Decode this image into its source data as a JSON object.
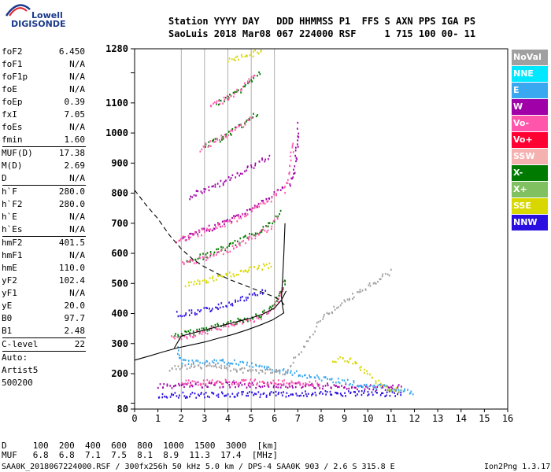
{
  "logo": {
    "word": "Lowell",
    "brand": "DIGISONDE"
  },
  "header": {
    "line1": "Station YYYY DAY   DDD HHMMSS P1  FFS S AXN PPS IGA PS",
    "line2": "SaoLuis 2018 Mar08 067 224000 RSF     1 715 100 00- 11"
  },
  "params": [
    {
      "name": "foF2",
      "value": "6.450"
    },
    {
      "name": "foF1",
      "value": "N/A"
    },
    {
      "name": "foF1p",
      "value": "N/A"
    },
    {
      "name": "foE",
      "value": "N/A"
    },
    {
      "name": "foEp",
      "value": "0.39"
    },
    {
      "name": "fxI",
      "value": "7.05"
    },
    {
      "name": "foEs",
      "value": "N/A"
    },
    {
      "name": "fmin",
      "value": "1.60",
      "sep": true
    },
    {
      "name": "MUF(D)",
      "value": "17.38"
    },
    {
      "name": "M(D)",
      "value": "2.69"
    },
    {
      "name": "D",
      "value": "N/A",
      "sep": true
    },
    {
      "name": "h`F",
      "value": "280.0"
    },
    {
      "name": "h`F2",
      "value": "280.0"
    },
    {
      "name": "h`E",
      "value": "N/A"
    },
    {
      "name": "h`Es",
      "value": "N/A",
      "sep": true
    },
    {
      "name": "hmF2",
      "value": "401.5"
    },
    {
      "name": "hmF1",
      "value": "N/A"
    },
    {
      "name": "hmE",
      "value": "110.0"
    },
    {
      "name": "yF2",
      "value": "102.4"
    },
    {
      "name": "yF1",
      "value": "N/A"
    },
    {
      "name": "yE",
      "value": "20.0"
    },
    {
      "name": "B0",
      "value": "97.7"
    },
    {
      "name": "B1",
      "value": "2.48",
      "sep": true
    },
    {
      "name": "C-level",
      "value": "22",
      "sep": true
    },
    {
      "name": "Auto:",
      "value": ""
    },
    {
      "name": "Artist5",
      "value": ""
    },
    {
      "name": "500200",
      "value": ""
    }
  ],
  "legend": [
    {
      "label": "NoVal",
      "color": "#a0a0a0"
    },
    {
      "label": "NNE",
      "color": "#00e8ff"
    },
    {
      "label": "E",
      "color": "#3aa8f0"
    },
    {
      "label": "W",
      "color": "#a000a8"
    },
    {
      "label": "Vo-",
      "color": "#ff55aa"
    },
    {
      "label": "Vo+",
      "color": "#ff0033"
    },
    {
      "label": "SSW",
      "color": "#f5b0b0"
    },
    {
      "label": "X-",
      "color": "#007a00"
    },
    {
      "label": "X+",
      "color": "#80c060"
    },
    {
      "label": "SSE",
      "color": "#d8d800"
    },
    {
      "label": "NNW",
      "color": "#2a10e0"
    }
  ],
  "chart_data": {
    "type": "scatter",
    "xlim": [
      0,
      16
    ],
    "ylim": [
      80,
      1280
    ],
    "x_ticks": [
      0,
      1,
      2,
      3,
      4,
      5,
      6,
      7,
      8,
      9,
      10,
      11,
      12,
      13,
      14,
      15,
      16
    ],
    "y_ticks": [
      80,
      100,
      200,
      300,
      400,
      500,
      600,
      700,
      800,
      900,
      1000,
      1100,
      1200,
      1280
    ],
    "y_tick_labels": [
      "80",
      "",
      "200",
      "300",
      "400",
      "500",
      "600",
      "700",
      "800",
      "900",
      "1000",
      "1100",
      "",
      "1280"
    ],
    "grid_x": [
      2,
      3,
      4,
      5,
      6
    ],
    "profile_curve": [
      [
        0.0,
        245
      ],
      [
        0.6,
        258
      ],
      [
        1.2,
        272
      ],
      [
        1.8,
        285
      ],
      [
        2.4,
        295
      ],
      [
        3.0,
        305
      ],
      [
        3.6,
        318
      ],
      [
        4.2,
        330
      ],
      [
        4.8,
        345
      ],
      [
        5.4,
        362
      ],
      [
        5.9,
        378
      ],
      [
        6.2,
        392
      ],
      [
        6.4,
        402
      ],
      [
        6.35,
        420
      ],
      [
        6.3,
        455
      ],
      [
        6.35,
        520
      ],
      [
        6.4,
        600
      ],
      [
        6.45,
        700
      ]
    ],
    "hm_curve": [
      [
        1.7,
        285
      ],
      [
        2.0,
        325
      ],
      [
        2.5,
        335
      ],
      [
        3.0,
        345
      ],
      [
        3.5,
        355
      ],
      [
        4.0,
        365
      ],
      [
        4.5,
        375
      ],
      [
        5.0,
        385
      ],
      [
        5.5,
        398
      ],
      [
        6.0,
        418
      ],
      [
        6.3,
        445
      ],
      [
        6.5,
        475
      ]
    ],
    "dashed_curve": [
      [
        0.0,
        810
      ],
      [
        0.5,
        760
      ],
      [
        1.0,
        715
      ],
      [
        1.5,
        660
      ],
      [
        2.0,
        615
      ],
      [
        2.5,
        580
      ],
      [
        3.0,
        555
      ],
      [
        3.5,
        535
      ],
      [
        4.0,
        515
      ],
      [
        4.5,
        500
      ],
      [
        5.0,
        485
      ],
      [
        5.5,
        470
      ],
      [
        6.0,
        455
      ],
      [
        6.3,
        440
      ],
      [
        6.5,
        420
      ]
    ],
    "traces": [
      {
        "series": "X-",
        "color": "#007a00",
        "points": [
          [
            1.7,
            330
          ],
          [
            2.4,
            340
          ],
          [
            3.2,
            355
          ],
          [
            4.0,
            370
          ],
          [
            4.8,
            385
          ],
          [
            5.5,
            400
          ],
          [
            6.0,
            430
          ],
          [
            6.3,
            480
          ],
          [
            6.5,
            525
          ]
        ]
      },
      {
        "series": "Vo-",
        "color": "#ff55aa",
        "points": [
          [
            1.6,
            320
          ],
          [
            2.3,
            330
          ],
          [
            3.1,
            345
          ],
          [
            3.9,
            360
          ],
          [
            4.7,
            375
          ],
          [
            5.4,
            392
          ],
          [
            5.9,
            420
          ],
          [
            6.2,
            460
          ],
          [
            6.4,
            510
          ]
        ]
      },
      {
        "series": "W",
        "color": "#a000a8",
        "points": [
          [
            2.0,
            650
          ],
          [
            3.0,
            680
          ],
          [
            4.0,
            710
          ],
          [
            5.0,
            750
          ],
          [
            5.8,
            790
          ],
          [
            6.4,
            830
          ]
        ]
      },
      {
        "series": "Vo-",
        "color": "#ff55aa",
        "points": [
          [
            1.8,
            645
          ],
          [
            2.8,
            670
          ],
          [
            3.8,
            700
          ],
          [
            4.8,
            735
          ],
          [
            5.6,
            770
          ],
          [
            6.2,
            810
          ]
        ]
      },
      {
        "series": "X-",
        "color": "#007a00",
        "points": [
          [
            2.2,
            580
          ],
          [
            3.0,
            595
          ],
          [
            4.0,
            625
          ],
          [
            5.0,
            665
          ],
          [
            5.8,
            700
          ],
          [
            6.3,
            745
          ]
        ]
      },
      {
        "series": "Vo-",
        "color": "#ff55aa",
        "points": [
          [
            2.0,
            570
          ],
          [
            3.0,
            585
          ],
          [
            4.0,
            615
          ],
          [
            5.0,
            655
          ],
          [
            5.8,
            690
          ],
          [
            6.2,
            735
          ]
        ]
      },
      {
        "series": "NNW",
        "color": "#2a10e0",
        "points": [
          [
            1.8,
            400
          ],
          [
            2.8,
            410
          ],
          [
            3.8,
            430
          ],
          [
            4.8,
            455
          ],
          [
            5.6,
            480
          ]
        ]
      },
      {
        "series": "SSE",
        "color": "#d8d800",
        "points": [
          [
            2.2,
            500
          ],
          [
            3.0,
            510
          ],
          [
            4.0,
            530
          ],
          [
            5.0,
            550
          ],
          [
            5.9,
            565
          ]
        ]
      },
      {
        "series": "W",
        "color": "#a000a8",
        "points": [
          [
            6.6,
            830
          ],
          [
            6.8,
            870
          ],
          [
            6.9,
            920
          ],
          [
            6.95,
            980
          ],
          [
            7.0,
            1040
          ]
        ]
      },
      {
        "series": "Vo-",
        "color": "#ff55aa",
        "points": [
          [
            6.4,
            810
          ],
          [
            6.6,
            860
          ],
          [
            6.7,
            920
          ],
          [
            6.8,
            980
          ]
        ]
      },
      {
        "series": "X-",
        "color": "#007a00",
        "points": [
          [
            3.0,
            960
          ],
          [
            3.8,
            990
          ],
          [
            4.6,
            1030
          ],
          [
            5.3,
            1070
          ]
        ]
      },
      {
        "series": "Vo-",
        "color": "#ff55aa",
        "points": [
          [
            2.8,
            950
          ],
          [
            3.6,
            980
          ],
          [
            4.4,
            1020
          ],
          [
            5.1,
            1060
          ]
        ]
      },
      {
        "series": "X-",
        "color": "#007a00",
        "points": [
          [
            3.5,
            1100
          ],
          [
            4.2,
            1130
          ],
          [
            4.9,
            1170
          ],
          [
            5.4,
            1210
          ]
        ]
      },
      {
        "series": "Vo-",
        "color": "#ff55aa",
        "points": [
          [
            3.2,
            1090
          ],
          [
            4.0,
            1120
          ],
          [
            4.7,
            1160
          ],
          [
            5.2,
            1200
          ]
        ]
      },
      {
        "series": "SSE",
        "color": "#d8d800",
        "points": [
          [
            4.0,
            1240
          ],
          [
            4.8,
            1260
          ],
          [
            5.5,
            1280
          ]
        ]
      },
      {
        "series": "W",
        "color": "#a000a8",
        "points": [
          [
            2.3,
            790
          ],
          [
            3.2,
            820
          ],
          [
            4.2,
            855
          ],
          [
            5.0,
            890
          ],
          [
            5.8,
            930
          ]
        ]
      },
      {
        "series": "NNW",
        "color": "#2a10e0",
        "points": [
          [
            1.0,
            130
          ],
          [
            2.0,
            130
          ],
          [
            4.0,
            132
          ],
          [
            6.0,
            133
          ],
          [
            8.0,
            135
          ],
          [
            10.0,
            135
          ],
          [
            11.5,
            133
          ]
        ]
      },
      {
        "series": "W",
        "color": "#a000a8",
        "points": [
          [
            1.0,
            162
          ],
          [
            2.5,
            165
          ],
          [
            4.0,
            166
          ],
          [
            5.5,
            163
          ],
          [
            7.0,
            165
          ],
          [
            8.5,
            160
          ],
          [
            10.0,
            158
          ],
          [
            11.5,
            155
          ]
        ]
      },
      {
        "series": "Vo-",
        "color": "#ff55aa",
        "points": [
          [
            2.0,
            172
          ],
          [
            3.5,
            174
          ],
          [
            5.0,
            176
          ],
          [
            6.5,
            172
          ],
          [
            8.0,
            170
          ]
        ]
      },
      {
        "series": "SSE",
        "color": "#d8d800",
        "points": [
          [
            8.5,
            250
          ],
          [
            9.2,
            250
          ],
          [
            10.8,
            150
          ],
          [
            11.5,
            150
          ]
        ]
      },
      {
        "series": "E",
        "color": "#3aa8f0",
        "points": [
          [
            1.8,
            290
          ],
          [
            2.0,
            240
          ],
          [
            3.0,
            245
          ],
          [
            4.0,
            243
          ],
          [
            9.0,
            175
          ],
          [
            12.0,
            140
          ]
        ]
      },
      {
        "series": "NoVal",
        "color": "#a0a0a0",
        "points": [
          [
            1.5,
            220
          ],
          [
            3.0,
            230
          ],
          [
            5.0,
            212
          ],
          [
            6.5,
            205
          ],
          [
            8.0,
            390
          ],
          [
            11.0,
            545
          ]
        ]
      }
    ]
  },
  "footer": {
    "distances": "D     100  200  400  600  800  1000  1500  3000  [km]",
    "mufs": "MUF   6.8  6.8  7.1  7.5  8.1  8.9  11.3  17.4  [MHz]"
  },
  "bottom_line": "SAA0K_2018067224000.RSF / 300fx256h 50 kHz 5.0 km / DPS-4 SAA0K 903 / 2.6 S 315.8 E",
  "version": "Ion2Png 1.3.17"
}
